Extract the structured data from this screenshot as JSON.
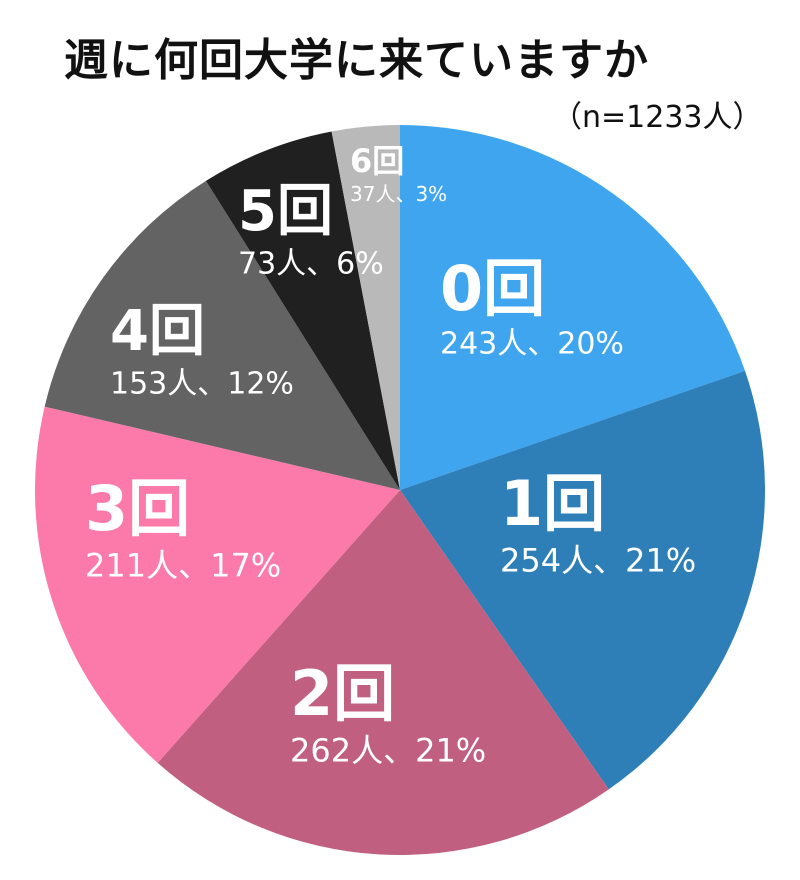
{
  "title": "週に何回大学に来ていますか",
  "subtitle": "（n=1233人）",
  "chart_data": {
    "type": "pie",
    "start": "12 o'clock",
    "direction": "clockwise",
    "slices": [
      {
        "name": "0回",
        "count": 243,
        "count_label": "243人、20%",
        "percent": 20,
        "color": "#3fa5ef"
      },
      {
        "name": "1回",
        "count": 254,
        "count_label": "254人、21%",
        "percent": 21,
        "color": "#2e7fb8"
      },
      {
        "name": "2回",
        "count": 262,
        "count_label": "262人、21%",
        "percent": 21,
        "color": "#c05f80"
      },
      {
        "name": "3回",
        "count": 211,
        "count_label": "211人、17%",
        "percent": 17,
        "color": "#fc7aaa"
      },
      {
        "name": "4回",
        "count": 153,
        "count_label": "153人、12%",
        "percent": 12,
        "color": "#636363"
      },
      {
        "name": "5回",
        "count": 73,
        "count_label": "73人、6%",
        "percent": 6,
        "color": "#202020"
      },
      {
        "name": "6回",
        "count": 37,
        "count_label": "37人、3%",
        "percent": 3,
        "color": "#b9b9b9"
      }
    ]
  }
}
